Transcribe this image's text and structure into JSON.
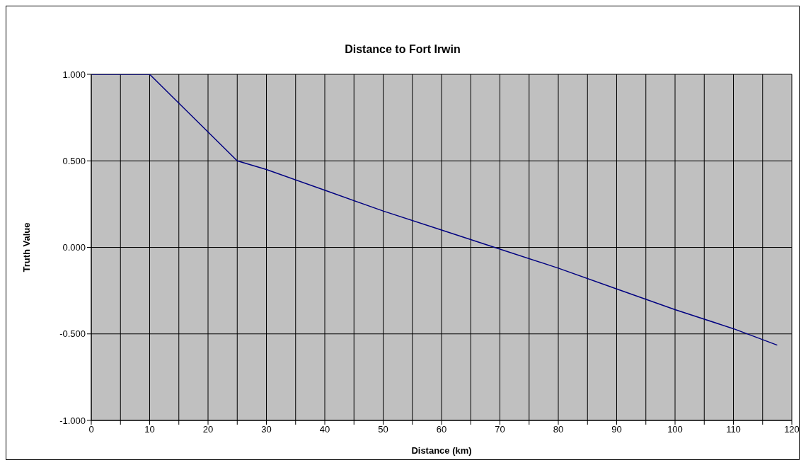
{
  "chart_data": {
    "type": "line",
    "title": "Distance to Fort Irwin",
    "xlabel": "Distance  (km)",
    "ylabel": "Truth Value",
    "x": [
      0,
      5,
      10,
      15,
      20,
      25,
      30,
      40,
      50,
      60,
      70,
      80,
      90,
      100,
      110,
      117.5
    ],
    "series": [
      {
        "color": "#000080",
        "values": [
          1,
          1,
          1,
          0.833,
          0.667,
          0.5,
          0.45,
          0.33,
          0.21,
          0.1,
          -0.01,
          -0.12,
          -0.24,
          -0.36,
          -0.47,
          -0.565
        ]
      }
    ],
    "xlim": [
      0,
      120
    ],
    "xticks": [
      0,
      {
        "value": 5,
        "label": null
      },
      10,
      {
        "value": 15,
        "label": null
      },
      20,
      {
        "value": 25,
        "label": null
      },
      30,
      {
        "value": 35,
        "label": null
      },
      40,
      {
        "value": 45,
        "label": null
      },
      50,
      {
        "value": 55,
        "label": null
      },
      60,
      {
        "value": 65,
        "label": null
      },
      70,
      {
        "value": 75,
        "label": null
      },
      80,
      {
        "value": 85,
        "label": null
      },
      90,
      {
        "value": 95,
        "label": null
      },
      100,
      {
        "value": 105,
        "label": null
      },
      110,
      {
        "value": 115,
        "label": null
      },
      120
    ],
    "ylim": [
      -1,
      1
    ],
    "yticks": [
      {
        "value": -1,
        "label": "-1.000"
      },
      {
        "value": -0.5,
        "label": "-0.500"
      },
      {
        "value": 0,
        "label": "0.000"
      },
      {
        "value": 0.5,
        "label": "0.500"
      },
      {
        "value": 1,
        "label": "1.000"
      }
    ],
    "grid": true,
    "legend": false,
    "marker": "none",
    "line_style": "solid"
  }
}
